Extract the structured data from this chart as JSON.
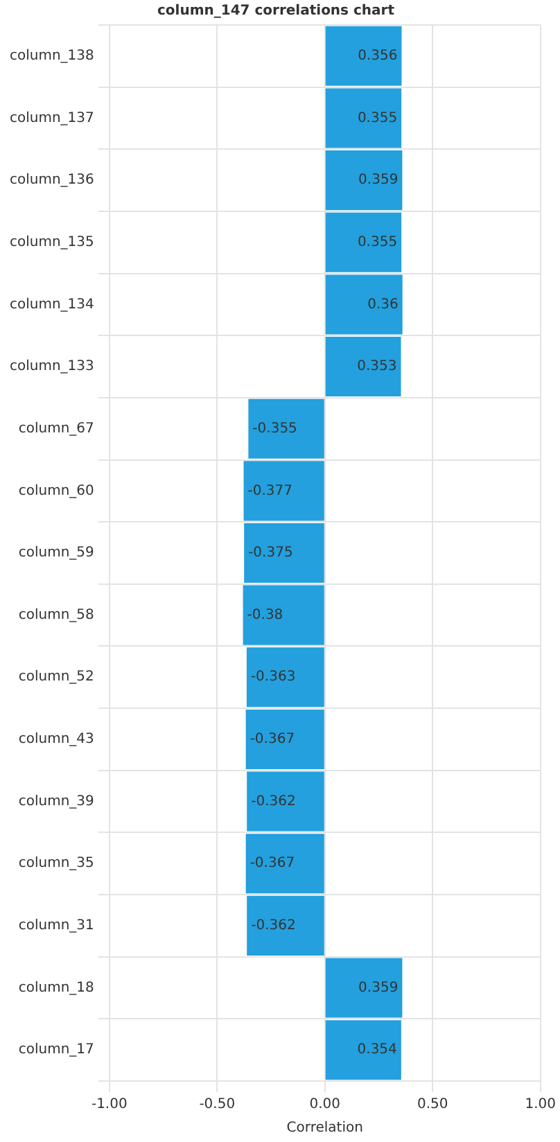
{
  "chart_data": {
    "type": "bar",
    "orientation": "horizontal",
    "title": "column_147 correlations chart",
    "xlabel": "Correlation",
    "categories": [
      "column_138",
      "column_137",
      "column_136",
      "column_135",
      "column_134",
      "column_133",
      "column_67",
      "column_60",
      "column_59",
      "column_58",
      "column_52",
      "column_43",
      "column_39",
      "column_35",
      "column_31",
      "column_18",
      "column_17"
    ],
    "values": [
      0.356,
      0.355,
      0.359,
      0.355,
      0.36,
      0.353,
      -0.355,
      -0.377,
      -0.375,
      -0.38,
      -0.363,
      -0.367,
      -0.362,
      -0.367,
      -0.362,
      0.359,
      0.354
    ],
    "color": "#23a0dd",
    "data_labels": true,
    "grid": true,
    "legend": false,
    "xlim": [
      -1,
      1
    ],
    "xticks": [
      {
        "value": -1,
        "label": "-1.00"
      },
      {
        "value": -0.5,
        "label": "-0.50"
      },
      {
        "value": 0,
        "label": "0.00"
      },
      {
        "value": 0.5,
        "label": "0.50"
      },
      {
        "value": 1,
        "label": "1.00"
      }
    ]
  }
}
